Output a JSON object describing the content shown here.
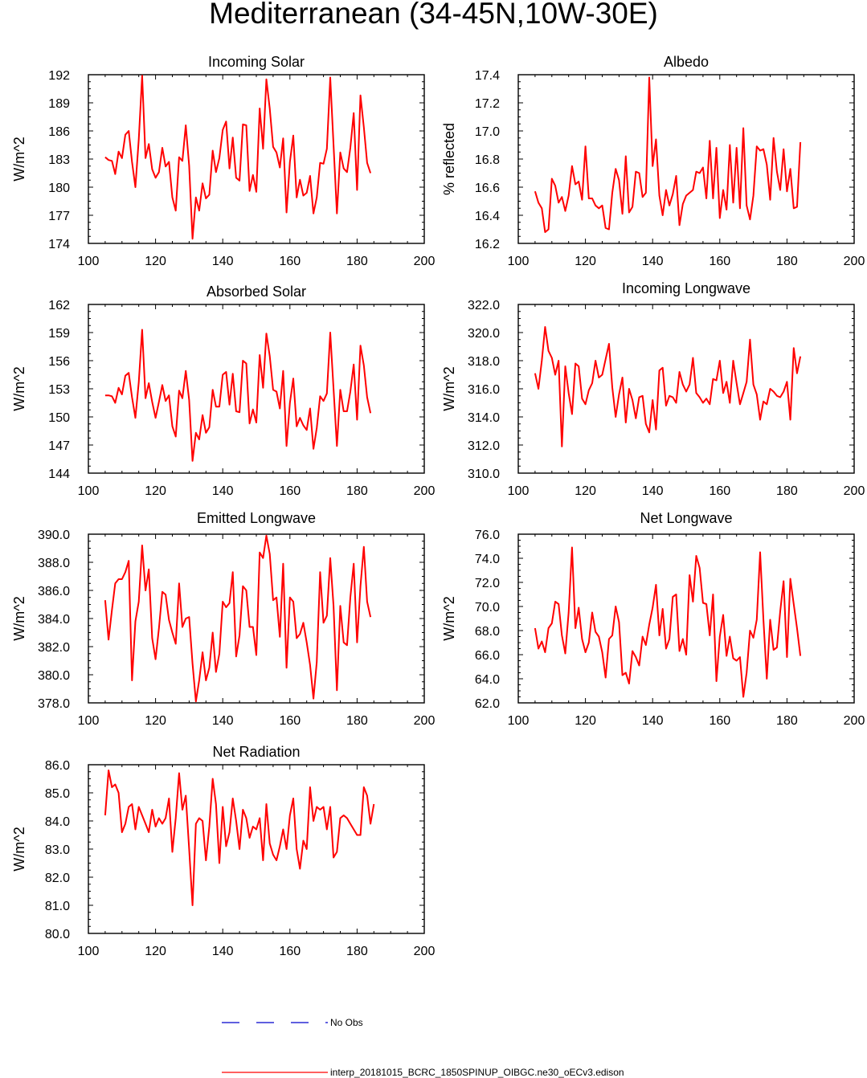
{
  "title": "Mediterranean (34-45N,10W-30E)",
  "colors": {
    "model": "#ff0000",
    "obs": "#0000cc",
    "axis": "#000000"
  },
  "legend": {
    "obs_label": "No Obs",
    "model_label": "interp_20181015_BCRC_1850SPINUP_OIBGC.ne30_oECv3.edison"
  },
  "chart_data": [
    {
      "type": "line",
      "title": "Incoming Solar",
      "ylabel": "W/m^2",
      "xlim": [
        100,
        200
      ],
      "ylim": [
        174,
        192
      ],
      "xticks": [
        "100",
        "120",
        "140",
        "160",
        "180",
        "200"
      ],
      "yticks": [
        "174",
        "177",
        "180",
        "183",
        "186",
        "189",
        "192"
      ],
      "x_start": 105,
      "series": [
        {
          "values": [
            183.2,
            182.9,
            182.8,
            181.4,
            183.8,
            183.1,
            185.6,
            186,
            182.7,
            180.0,
            185.1,
            191.9,
            183.1,
            184.6,
            181.9,
            181.0,
            181.6,
            184.2,
            182.2,
            182.7,
            178.9,
            177.5,
            183.2,
            182.8,
            186.6,
            182.3,
            174.5,
            178.9,
            177.5,
            180.4,
            178.8,
            179.2,
            183.9,
            181.6,
            183.1,
            186.1,
            187.0,
            182.0,
            185.3,
            181.0,
            180.7,
            186.7,
            186.6,
            179.6,
            181.3,
            179.5,
            188.4,
            184.1,
            191.5,
            188.4,
            184.3,
            183.7,
            182.1,
            185.2,
            177.3,
            182.7,
            185.5,
            178.9,
            180.8,
            179.1,
            179.4,
            181.2,
            177.2,
            178.9,
            182.6,
            182.5,
            184.1,
            191.7,
            184.5,
            177.2,
            183.7,
            182.0,
            181.6,
            184.2,
            187.9,
            179.7,
            189.8,
            186.4,
            182.6,
            181.5
          ]
        }
      ]
    },
    {
      "type": "line",
      "title": "Albedo",
      "ylabel": "% reflected",
      "xlim": [
        100,
        200
      ],
      "ylim": [
        16.2,
        17.4
      ],
      "xticks": [
        "100",
        "120",
        "140",
        "160",
        "180",
        "200"
      ],
      "yticks": [
        "16.2",
        "16.4",
        "16.6",
        "16.8",
        "17.0",
        "17.2",
        "17.4"
      ],
      "x_start": 105,
      "series": [
        {
          "values": [
            16.57,
            16.49,
            16.45,
            16.28,
            16.3,
            16.66,
            16.61,
            16.49,
            16.53,
            16.43,
            16.54,
            16.75,
            16.62,
            16.64,
            16.51,
            16.89,
            16.52,
            16.52,
            16.47,
            16.45,
            16.47,
            16.31,
            16.3,
            16.56,
            16.73,
            16.65,
            16.41,
            16.82,
            16.42,
            16.46,
            16.71,
            16.7,
            16.53,
            16.56,
            17.38,
            16.75,
            16.94,
            16.54,
            16.4,
            16.58,
            16.47,
            16.55,
            16.68,
            16.33,
            16.48,
            16.54,
            16.56,
            16.58,
            16.71,
            16.7,
            16.74,
            16.52,
            16.93,
            16.52,
            16.88,
            16.38,
            16.58,
            16.44,
            16.9,
            16.49,
            16.88,
            16.45,
            17.02,
            16.47,
            16.37,
            16.54,
            16.89,
            16.86,
            16.87,
            16.76,
            16.51,
            16.95,
            16.71,
            16.58,
            16.87,
            16.57,
            16.73,
            16.45,
            16.46,
            16.92
          ]
        }
      ]
    },
    {
      "type": "line",
      "title": "Absorbed Solar",
      "ylabel": "W/m^2",
      "xlim": [
        100,
        200
      ],
      "ylim": [
        144,
        162
      ],
      "xticks": [
        "100",
        "120",
        "140",
        "160",
        "180",
        "200"
      ],
      "yticks": [
        "144",
        "147",
        "150",
        "153",
        "156",
        "159",
        "162"
      ],
      "x_start": 105,
      "series": [
        {
          "values": [
            152.3,
            152.3,
            152.2,
            151.5,
            153.1,
            152.4,
            154.4,
            154.7,
            152.1,
            149.9,
            153.7,
            159.3,
            152.0,
            153.6,
            151.6,
            149.9,
            151.6,
            153.4,
            151.7,
            152.3,
            149.0,
            147.9,
            152.8,
            152.0,
            154.9,
            151.8,
            145.3,
            148.3,
            147.6,
            150.2,
            148.3,
            148.9,
            152.9,
            151.1,
            151.1,
            154.5,
            154.8,
            151.3,
            154.6,
            150.6,
            150.5,
            156.0,
            155.7,
            149.3,
            150.8,
            149.4,
            156.6,
            153.1,
            158.9,
            156.5,
            152.9,
            152.7,
            150.9,
            154.9,
            146.9,
            151.5,
            154.1,
            149.0,
            149.9,
            149.1,
            148.6,
            150.9,
            146.6,
            148.8,
            152.2,
            151.7,
            152.5,
            159.0,
            153.0,
            146.9,
            152.9,
            150.6,
            150.6,
            152.7,
            155.6,
            149.7,
            157.6,
            155.5,
            152.1,
            150.4
          ]
        }
      ]
    },
    {
      "type": "line",
      "title": "Incoming Longwave",
      "ylabel": "W/m^2",
      "xlim": [
        100,
        200
      ],
      "ylim": [
        310,
        322
      ],
      "xticks": [
        "100",
        "120",
        "140",
        "160",
        "180",
        "200"
      ],
      "yticks": [
        "310.0",
        "312.0",
        "314.0",
        "316.0",
        "318.0",
        "320.0",
        "322.0"
      ],
      "x_start": 105,
      "series": [
        {
          "values": [
            317.1,
            316.0,
            318.0,
            320.4,
            318.7,
            318.2,
            317.0,
            318.0,
            311.9,
            317.6,
            315.7,
            314.2,
            317.8,
            317.6,
            315.3,
            314.9,
            315.9,
            316.4,
            318.0,
            316.8,
            317.0,
            318.1,
            319.2,
            316.1,
            314.0,
            315.6,
            316.8,
            313.6,
            316.0,
            315.2,
            313.9,
            315.4,
            315.5,
            313.5,
            312.9,
            315.2,
            313.1,
            317.3,
            317.5,
            314.8,
            315.5,
            315.4,
            315.0,
            317.2,
            316.3,
            315.8,
            316.3,
            318.2,
            315.7,
            315.4,
            315.0,
            315.3,
            314.9,
            316.7,
            316.6,
            318.0,
            315.7,
            316.5,
            315.0,
            318.0,
            316.4,
            314.9,
            315.7,
            316.5,
            319.5,
            316.3,
            315.6,
            313.8,
            315.1,
            314.9,
            316.0,
            315.8,
            315.5,
            315.4,
            315.8,
            316.5,
            313.8,
            318.9,
            317.1,
            318.3
          ]
        }
      ]
    },
    {
      "type": "line",
      "title": "Emitted Longwave",
      "ylabel": "W/m^2",
      "xlim": [
        100,
        200
      ],
      "ylim": [
        378,
        390
      ],
      "xticks": [
        "100",
        "120",
        "140",
        "160",
        "180",
        "200"
      ],
      "yticks": [
        "378.0",
        "380.0",
        "382.0",
        "384.0",
        "386.0",
        "388.0",
        "390.0"
      ],
      "x_start": 105,
      "series": [
        {
          "values": [
            385.3,
            382.5,
            384.6,
            386.5,
            386.8,
            386.8,
            387.3,
            388.1,
            379.6,
            383.8,
            385.2,
            389.2,
            386.0,
            387.5,
            382.6,
            381.1,
            383.3,
            385.9,
            385.7,
            383.9,
            383.0,
            382.2,
            386.5,
            383.4,
            384.0,
            384.1,
            380.8,
            378.1,
            379.6,
            381.6,
            379.6,
            380.5,
            383.0,
            380.2,
            381.5,
            385.2,
            384.8,
            385.1,
            387.3,
            381.3,
            382.8,
            386.3,
            386.0,
            383.4,
            383.4,
            381.4,
            388.7,
            388.3,
            389.9,
            388.6,
            385.3,
            385.5,
            382.7,
            387.9,
            380.5,
            385.5,
            385.2,
            382.6,
            382.9,
            383.7,
            382.3,
            380.7,
            378.3,
            380.9,
            387.3,
            383.7,
            384.2,
            388.3,
            384.9,
            378.9,
            384.9,
            382.3,
            382.1,
            385.5,
            387.9,
            382.3,
            386.3,
            389.1,
            385.2,
            384.1
          ]
        }
      ]
    },
    {
      "type": "line",
      "title": "Net Longwave",
      "ylabel": "W/m^2",
      "xlim": [
        100,
        200
      ],
      "ylim": [
        62,
        76
      ],
      "xticks": [
        "100",
        "120",
        "140",
        "160",
        "180",
        "200"
      ],
      "yticks": [
        "62.0",
        "64.0",
        "66.0",
        "68.0",
        "70.0",
        "72.0",
        "74.0",
        "76.0"
      ],
      "x_start": 105,
      "series": [
        {
          "values": [
            68.2,
            66.5,
            67.1,
            66.2,
            68.2,
            68.6,
            70.4,
            70.2,
            67.6,
            66.1,
            69.5,
            74.9,
            68.2,
            69.9,
            67.3,
            66.2,
            67.0,
            69.5,
            67.9,
            67.5,
            66.2,
            64.1,
            67.3,
            67.6,
            70.0,
            68.7,
            64.3,
            64.5,
            63.6,
            66.3,
            65.8,
            65.1,
            67.5,
            66.8,
            68.5,
            69.9,
            71.8,
            67.6,
            69.8,
            66.5,
            67.3,
            70.8,
            71.0,
            66.3,
            67.3,
            66.0,
            72.6,
            70.4,
            74.2,
            73.2,
            70.3,
            70.2,
            67.6,
            71.0,
            63.8,
            67.5,
            69.3,
            65.9,
            67.5,
            65.7,
            65.5,
            65.8,
            62.5,
            64.5,
            68.0,
            67.4,
            68.9,
            74.5,
            68.9,
            64.0,
            68.9,
            66.4,
            66.6,
            69.6,
            72.1,
            65.8,
            72.3,
            70.2,
            68.2,
            65.9
          ]
        }
      ]
    },
    {
      "type": "line",
      "title": "Net Radiation",
      "ylabel": "W/m^2",
      "xlim": [
        100,
        200
      ],
      "ylim": [
        80,
        86
      ],
      "xticks": [
        "100",
        "120",
        "140",
        "160",
        "180",
        "200"
      ],
      "yticks": [
        "80.0",
        "81.0",
        "82.0",
        "83.0",
        "84.0",
        "85.0",
        "86.0"
      ],
      "x_start": 105,
      "series": [
        {
          "values": [
            84.2,
            85.8,
            85.2,
            85.3,
            85.0,
            83.6,
            83.9,
            84.5,
            84.6,
            83.7,
            84.5,
            84.2,
            83.9,
            83.6,
            84.4,
            83.8,
            84.1,
            83.9,
            84.1,
            84.8,
            82.9,
            84.1,
            85.7,
            84.4,
            84.9,
            83.0,
            81.0,
            83.9,
            84.1,
            84.0,
            82.6,
            83.8,
            85.5,
            84.6,
            82.5,
            84.5,
            83.1,
            83.6,
            84.8,
            84.0,
            83.0,
            84.4,
            84.1,
            83.4,
            83.8,
            83.7,
            84.1,
            82.6,
            84.6,
            83.2,
            82.8,
            82.6,
            83.1,
            83.7,
            83.0,
            84.2,
            84.8,
            83.0,
            82.3,
            83.3,
            83.0,
            85.2,
            84.0,
            84.5,
            84.4,
            84.5,
            83.7,
            84.5,
            82.7,
            82.9,
            84.1,
            84.2,
            84.1,
            83.9,
            83.7,
            83.5,
            83.5,
            85.2,
            84.9,
            83.9,
            84.6
          ]
        }
      ]
    }
  ]
}
